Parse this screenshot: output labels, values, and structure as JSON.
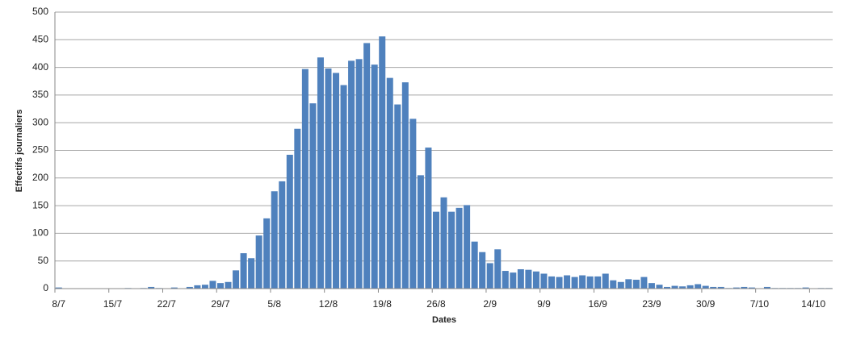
{
  "chart_data": {
    "type": "bar",
    "x_label": "Dates",
    "y_label": "Effectifs journaliers",
    "categories": [
      "8/7",
      null,
      null,
      null,
      null,
      null,
      null,
      "15/7",
      null,
      null,
      null,
      null,
      null,
      null,
      "22/7",
      null,
      null,
      null,
      null,
      null,
      null,
      "29/7",
      null,
      null,
      null,
      null,
      null,
      null,
      "5/8",
      null,
      null,
      null,
      null,
      null,
      null,
      "12/8",
      null,
      null,
      null,
      null,
      null,
      null,
      "19/8",
      null,
      null,
      null,
      null,
      null,
      null,
      "26/8",
      null,
      null,
      null,
      null,
      null,
      null,
      "2/9",
      null,
      null,
      null,
      null,
      null,
      null,
      "9/9",
      null,
      null,
      null,
      null,
      null,
      null,
      "16/9",
      null,
      null,
      null,
      null,
      null,
      null,
      "23/9",
      null,
      null,
      null,
      null,
      null,
      null,
      "30/9",
      null,
      null,
      null,
      null,
      null,
      null,
      "7/10",
      null,
      null,
      null,
      null,
      null,
      null,
      "14/10",
      null,
      null
    ],
    "values": [
      2,
      0,
      0,
      0,
      0,
      0,
      0,
      0,
      0,
      1,
      0,
      1,
      3,
      1,
      0,
      2,
      0,
      3,
      6,
      7,
      14,
      10,
      12,
      33,
      64,
      55,
      96,
      127,
      176,
      194,
      242,
      289,
      397,
      335,
      418,
      398,
      390,
      368,
      412,
      415,
      444,
      405,
      456,
      381,
      333,
      373,
      307,
      205,
      255,
      139,
      165,
      139,
      146,
      151,
      85,
      66,
      46,
      71,
      32,
      29,
      35,
      34,
      31,
      27,
      22,
      21,
      24,
      21,
      24,
      22,
      22,
      27,
      15,
      12,
      17,
      16,
      21,
      10,
      7,
      3,
      5,
      4,
      6,
      8,
      5,
      3,
      3,
      1,
      2,
      3,
      2,
      0,
      3,
      1,
      1,
      1,
      1,
      2,
      0,
      1,
      1
    ],
    "color": "#4f81bd",
    "ylim": [
      0,
      500
    ],
    "yticks": [
      0,
      50,
      100,
      150,
      200,
      250,
      300,
      350,
      400,
      450,
      500
    ],
    "grid": true
  }
}
